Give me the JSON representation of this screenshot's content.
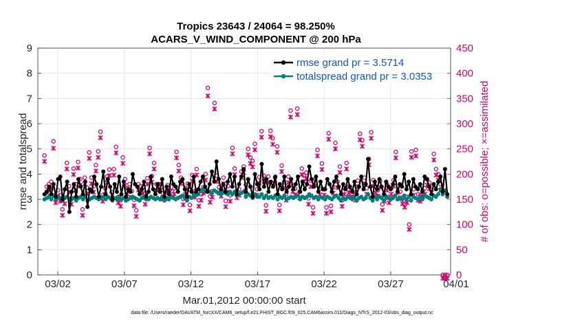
{
  "chart_data": {
    "type": "line",
    "title_line1": "Tropics 23643 / 24064 = 98.250%",
    "title_line2": "ACARS_V_WIND_COMPONENT @ 200 hPa",
    "xlabel": "Mar.01,2012 00:00:00 start",
    "ylabel_left": "rmse and totalspread",
    "ylabel_right": "# of obs: o=possible; ×=assimilated",
    "ylim_left": [
      0,
      9
    ],
    "ylim_right": [
      0,
      450
    ],
    "xlim": [
      0.5,
      31.5
    ],
    "left_ticks": [
      "0",
      "1",
      "2",
      "3",
      "4",
      "5",
      "6",
      "7",
      "8",
      "9"
    ],
    "right_ticks": [
      "0",
      "50",
      "100",
      "150",
      "200",
      "250",
      "300",
      "350",
      "400",
      "450"
    ],
    "x_ticks": [
      {
        "day": 2,
        "label": "03/02"
      },
      {
        "day": 7,
        "label": "03/07"
      },
      {
        "day": 12,
        "label": "03/12"
      },
      {
        "day": 17,
        "label": "03/17"
      },
      {
        "day": 22,
        "label": "03/22"
      },
      {
        "day": 27,
        "label": "03/27"
      },
      {
        "day": 32,
        "label": "04/01"
      }
    ],
    "series": [
      {
        "name": "rmse",
        "legend": "rmse grand pr = 3.5714",
        "color": "#000000",
        "axis": "left",
        "values": [
          3.2,
          3.3,
          3.5,
          3.2,
          3.6,
          3.1,
          3.8,
          3.9,
          3.0,
          3.4,
          3.7,
          2.5,
          3.3,
          3.6,
          3.1,
          3.8,
          3.5,
          3.2,
          3.7,
          2.7,
          3.4,
          3.3,
          3.9,
          3.6,
          3.1,
          3.5,
          4.1,
          3.2,
          3.8,
          3.5,
          3.0,
          3.6,
          3.3,
          3.9,
          3.2,
          3.7,
          3.1,
          3.4,
          3.3,
          4.0,
          3.6,
          3.5,
          3.2,
          3.4,
          3.7,
          3.1,
          3.3,
          3.9,
          3.4,
          3.2,
          3.6,
          3.3,
          3.8,
          3.1,
          3.5,
          3.2,
          3.9,
          3.6,
          3.5,
          3.3,
          3.7,
          3.8,
          3.4,
          3.1,
          3.6,
          3.3,
          3.9,
          3.3,
          3.4,
          3.7,
          3.9,
          3.5,
          3.3,
          3.6,
          4.1,
          3.7,
          4.5,
          3.8,
          3.4,
          3.6,
          3.3,
          3.7,
          4.0,
          3.5,
          3.9,
          3.2,
          3.6,
          3.9,
          4.2,
          3.3,
          3.8,
          3.5,
          3.1,
          4.0,
          3.6,
          3.4,
          4.4,
          3.5,
          3.8,
          3.3,
          3.7,
          3.5,
          3.9,
          3.2,
          3.6,
          3.4,
          3.9,
          3.3,
          3.5,
          3.8,
          3.4,
          3.6,
          3.9,
          3.3,
          3.7,
          3.4,
          3.6,
          4.3,
          3.8,
          3.5,
          3.9,
          3.3,
          3.7,
          3.4,
          3.4,
          3.8,
          3.6,
          3.3,
          3.7,
          3.9,
          3.5,
          3.2,
          3.6,
          3.4,
          3.8,
          3.5,
          3.3,
          3.7,
          3.2,
          3.5,
          3.9,
          3.4,
          3.6,
          4.6,
          3.5,
          3.1,
          3.7,
          3.4,
          3.8,
          3.5,
          3.2,
          3.7,
          3.5,
          3.4,
          3.6,
          3.9,
          3.3,
          3.6,
          3.5,
          4.0,
          3.4,
          3.7,
          3.2,
          3.8,
          3.5,
          3.4,
          3.6,
          3.3,
          3.9,
          3.8,
          3.5,
          3.2,
          3.6,
          3.4,
          3.7,
          3.9,
          3.3,
          4.2,
          3.2
        ]
      },
      {
        "name": "totalspread",
        "legend": "totalspread grand pr = 3.0353",
        "color": "#00807a",
        "axis": "left",
        "values": [
          3.0,
          3.05,
          3.1,
          3.0,
          3.15,
          3.0,
          3.1,
          3.05,
          2.95,
          3.05,
          3.1,
          3.0,
          3.0,
          3.05,
          2.95,
          3.05,
          3.1,
          3.0,
          3.1,
          2.95,
          3.0,
          3.05,
          3.1,
          3.05,
          3.0,
          3.05,
          3.1,
          3.0,
          3.1,
          3.05,
          2.95,
          3.05,
          3.0,
          3.1,
          3.0,
          3.05,
          2.95,
          3.0,
          3.05,
          3.1,
          3.05,
          3.0,
          2.95,
          3.05,
          3.1,
          3.0,
          3.0,
          3.1,
          3.05,
          3.0,
          3.05,
          3.0,
          3.1,
          2.95,
          3.05,
          3.0,
          3.1,
          3.05,
          3.0,
          3.05,
          3.1,
          3.15,
          3.05,
          2.95,
          3.1,
          3.05,
          3.2,
          3.15,
          3.2,
          3.35,
          3.4,
          3.3,
          3.35,
          3.3,
          3.25,
          3.35,
          3.3,
          3.25,
          3.2,
          3.3,
          3.25,
          3.2,
          3.3,
          3.2,
          3.3,
          3.15,
          3.2,
          3.25,
          3.3,
          3.1,
          3.2,
          3.15,
          3.05,
          3.2,
          3.1,
          3.1,
          3.2,
          3.05,
          3.15,
          3.05,
          3.1,
          3.05,
          3.15,
          3.0,
          3.1,
          3.05,
          3.15,
          3.0,
          3.05,
          3.1,
          3.05,
          3.1,
          3.15,
          3.0,
          3.1,
          3.05,
          3.1,
          3.2,
          3.15,
          3.05,
          3.1,
          3.0,
          3.1,
          3.05,
          3.0,
          3.1,
          3.05,
          3.0,
          3.1,
          3.15,
          3.05,
          2.95,
          3.05,
          3.0,
          3.1,
          3.05,
          3.0,
          3.1,
          2.95,
          3.05,
          3.1,
          3.0,
          3.05,
          3.2,
          3.05,
          2.95,
          3.1,
          3.0,
          3.1,
          3.05,
          2.95,
          3.1,
          3.05,
          3.0,
          3.05,
          3.15,
          3.0,
          3.05,
          3.0,
          3.15,
          3.0,
          3.1,
          2.95,
          3.1,
          3.05,
          3.0,
          3.1,
          3.0,
          3.15,
          3.1,
          3.05,
          3.0,
          3.15,
          3.1,
          3.2,
          3.4,
          3.2,
          3.35,
          3.1
        ]
      }
    ],
    "obs_possible": [
      237,
      175,
      180,
      185,
      265,
      155,
      168,
      158,
      130,
      153,
      222,
      176,
      152,
      211,
      180,
      224,
      190,
      130,
      193,
      173,
      243,
      193,
      176,
      218,
      245,
      284,
      158,
      172,
      195,
      209,
      164,
      210,
      254,
      155,
      148,
      233,
      190,
      172,
      180,
      166,
      149,
      128,
      180,
      176,
      174,
      152,
      192,
      252,
      196,
      222,
      180,
      180,
      180,
      162,
      163,
      178,
      168,
      166,
      172,
      244,
      218,
      193,
      151,
      172,
      181,
      139,
      198,
      166,
      210,
      148,
      160,
      174,
      200,
      371,
      156,
      166,
      341,
      197,
      174,
      168,
      193,
      147,
      176,
      158,
      252,
      211,
      165,
      170,
      205,
      215,
      179,
      250,
      233,
      226,
      260,
      170,
      194,
      285,
      197,
      138,
      195,
      286,
      271,
      193,
      255,
      139,
      217,
      184,
      160,
      195,
      326,
      177,
      171,
      330,
      165,
      211,
      197,
      203,
      152,
      187,
      134,
      189,
      248,
      171,
      221,
      170,
      134,
      281,
      137,
      174,
      262,
      185,
      215,
      148,
      172,
      222,
      175,
      167,
      165,
      160,
      187,
      280,
      267,
      193,
      172,
      230,
      283,
      188,
      175,
      168,
      186,
      140,
      158,
      180,
      155,
      172,
      188,
      244,
      163,
      165,
      153,
      146,
      155,
      100,
      245,
      170,
      248,
      160,
      158,
      167,
      172,
      190,
      183,
      175,
      240,
      210,
      200,
      180,
      0,
      0,
      0
    ],
    "obs_assimilated": [
      232,
      170,
      175,
      180,
      258,
      150,
      163,
      153,
      125,
      148,
      217,
      171,
      147,
      206,
      175,
      219,
      185,
      125,
      188,
      168,
      238,
      188,
      171,
      213,
      240,
      279,
      153,
      167,
      190,
      204,
      159,
      205,
      249,
      150,
      143,
      228,
      185,
      167,
      175,
      161,
      144,
      123,
      175,
      171,
      169,
      147,
      187,
      247,
      191,
      217,
      175,
      175,
      175,
      157,
      158,
      173,
      163,
      161,
      167,
      239,
      213,
      188,
      146,
      167,
      176,
      134,
      193,
      161,
      205,
      143,
      155,
      169,
      195,
      362,
      151,
      161,
      336,
      192,
      169,
      163,
      188,
      142,
      171,
      153,
      247,
      206,
      160,
      165,
      200,
      210,
      174,
      245,
      228,
      221,
      255,
      165,
      189,
      280,
      192,
      133,
      190,
      281,
      266,
      188,
      250,
      134,
      212,
      179,
      155,
      190,
      320,
      172,
      166,
      325,
      160,
      206,
      192,
      198,
      147,
      182,
      129,
      184,
      243,
      166,
      216,
      165,
      129,
      276,
      132,
      169,
      257,
      180,
      210,
      143,
      167,
      217,
      170,
      162,
      160,
      155,
      182,
      275,
      262,
      188,
      167,
      225,
      278,
      183,
      170,
      163,
      181,
      135,
      153,
      175,
      150,
      167,
      183,
      239,
      158,
      160,
      148,
      141,
      150,
      97,
      240,
      165,
      243,
      155,
      153,
      162,
      167,
      185,
      178,
      170,
      235,
      205,
      195,
      175,
      0,
      0,
      0
    ],
    "obs_color": "#d6006c",
    "footnote": "data file: /Users/raeder/DAI/ATM_forcXX/CAM6_setup/f.e21.FHIST_BGC.f09_025.CAM6assim.011/Diags_NTrS_2012-03/obs_diag_output.nc"
  }
}
